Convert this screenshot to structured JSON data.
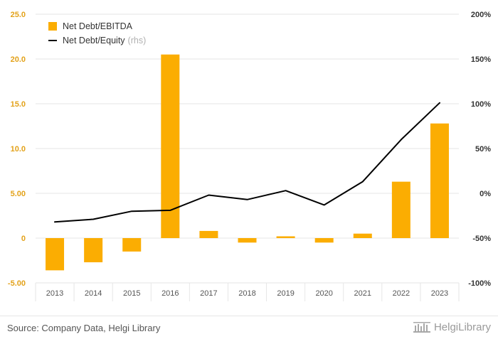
{
  "colors": {
    "bar": "#FBAD02",
    "line": "#000000",
    "grid": "#e6e6e6",
    "axis_left_text": "#e3a21a",
    "axis_right_text": "#333333",
    "tick_text": "#555555"
  },
  "chart_data": {
    "type": "bar",
    "categories": [
      "2013",
      "2014",
      "2015",
      "2016",
      "2017",
      "2018",
      "2019",
      "2020",
      "2021",
      "2022",
      "2023"
    ],
    "series": [
      {
        "name": "Net Debt/EBITDA",
        "type": "bar",
        "axis": "left",
        "values": [
          -3.6,
          -2.7,
          -1.5,
          20.5,
          0.8,
          -0.5,
          0.2,
          -0.5,
          0.5,
          6.3,
          12.8
        ]
      },
      {
        "name": "Net Debt/Equity",
        "type": "line",
        "axis": "right",
        "values": [
          -32,
          -29,
          -20,
          -19,
          -2,
          -7,
          3,
          -13,
          13,
          60,
          101
        ]
      }
    ],
    "y_left": {
      "min": -5,
      "max": 25,
      "ticks": [
        -5,
        0,
        5,
        10,
        15,
        20,
        25
      ],
      "tick_labels": [
        "-5.00",
        "0",
        "5.00",
        "10.0",
        "15.0",
        "20.0",
        "25.0"
      ]
    },
    "y_right": {
      "min": -100,
      "max": 200,
      "ticks": [
        -100,
        -50,
        0,
        50,
        100,
        150,
        200
      ],
      "tick_labels": [
        "-100%",
        "-50%",
        "0%",
        "50%",
        "100%",
        "150%",
        "200%"
      ]
    },
    "legend": {
      "position": "top-left",
      "bar_label": "Net Debt/EBITDA",
      "line_label": "Net Debt/Equity",
      "line_suffix": "(rhs)"
    },
    "grid": true
  },
  "footer": {
    "source": "Source: Company Data, Helgi Library",
    "logo_text": "HelgiLibrary"
  }
}
